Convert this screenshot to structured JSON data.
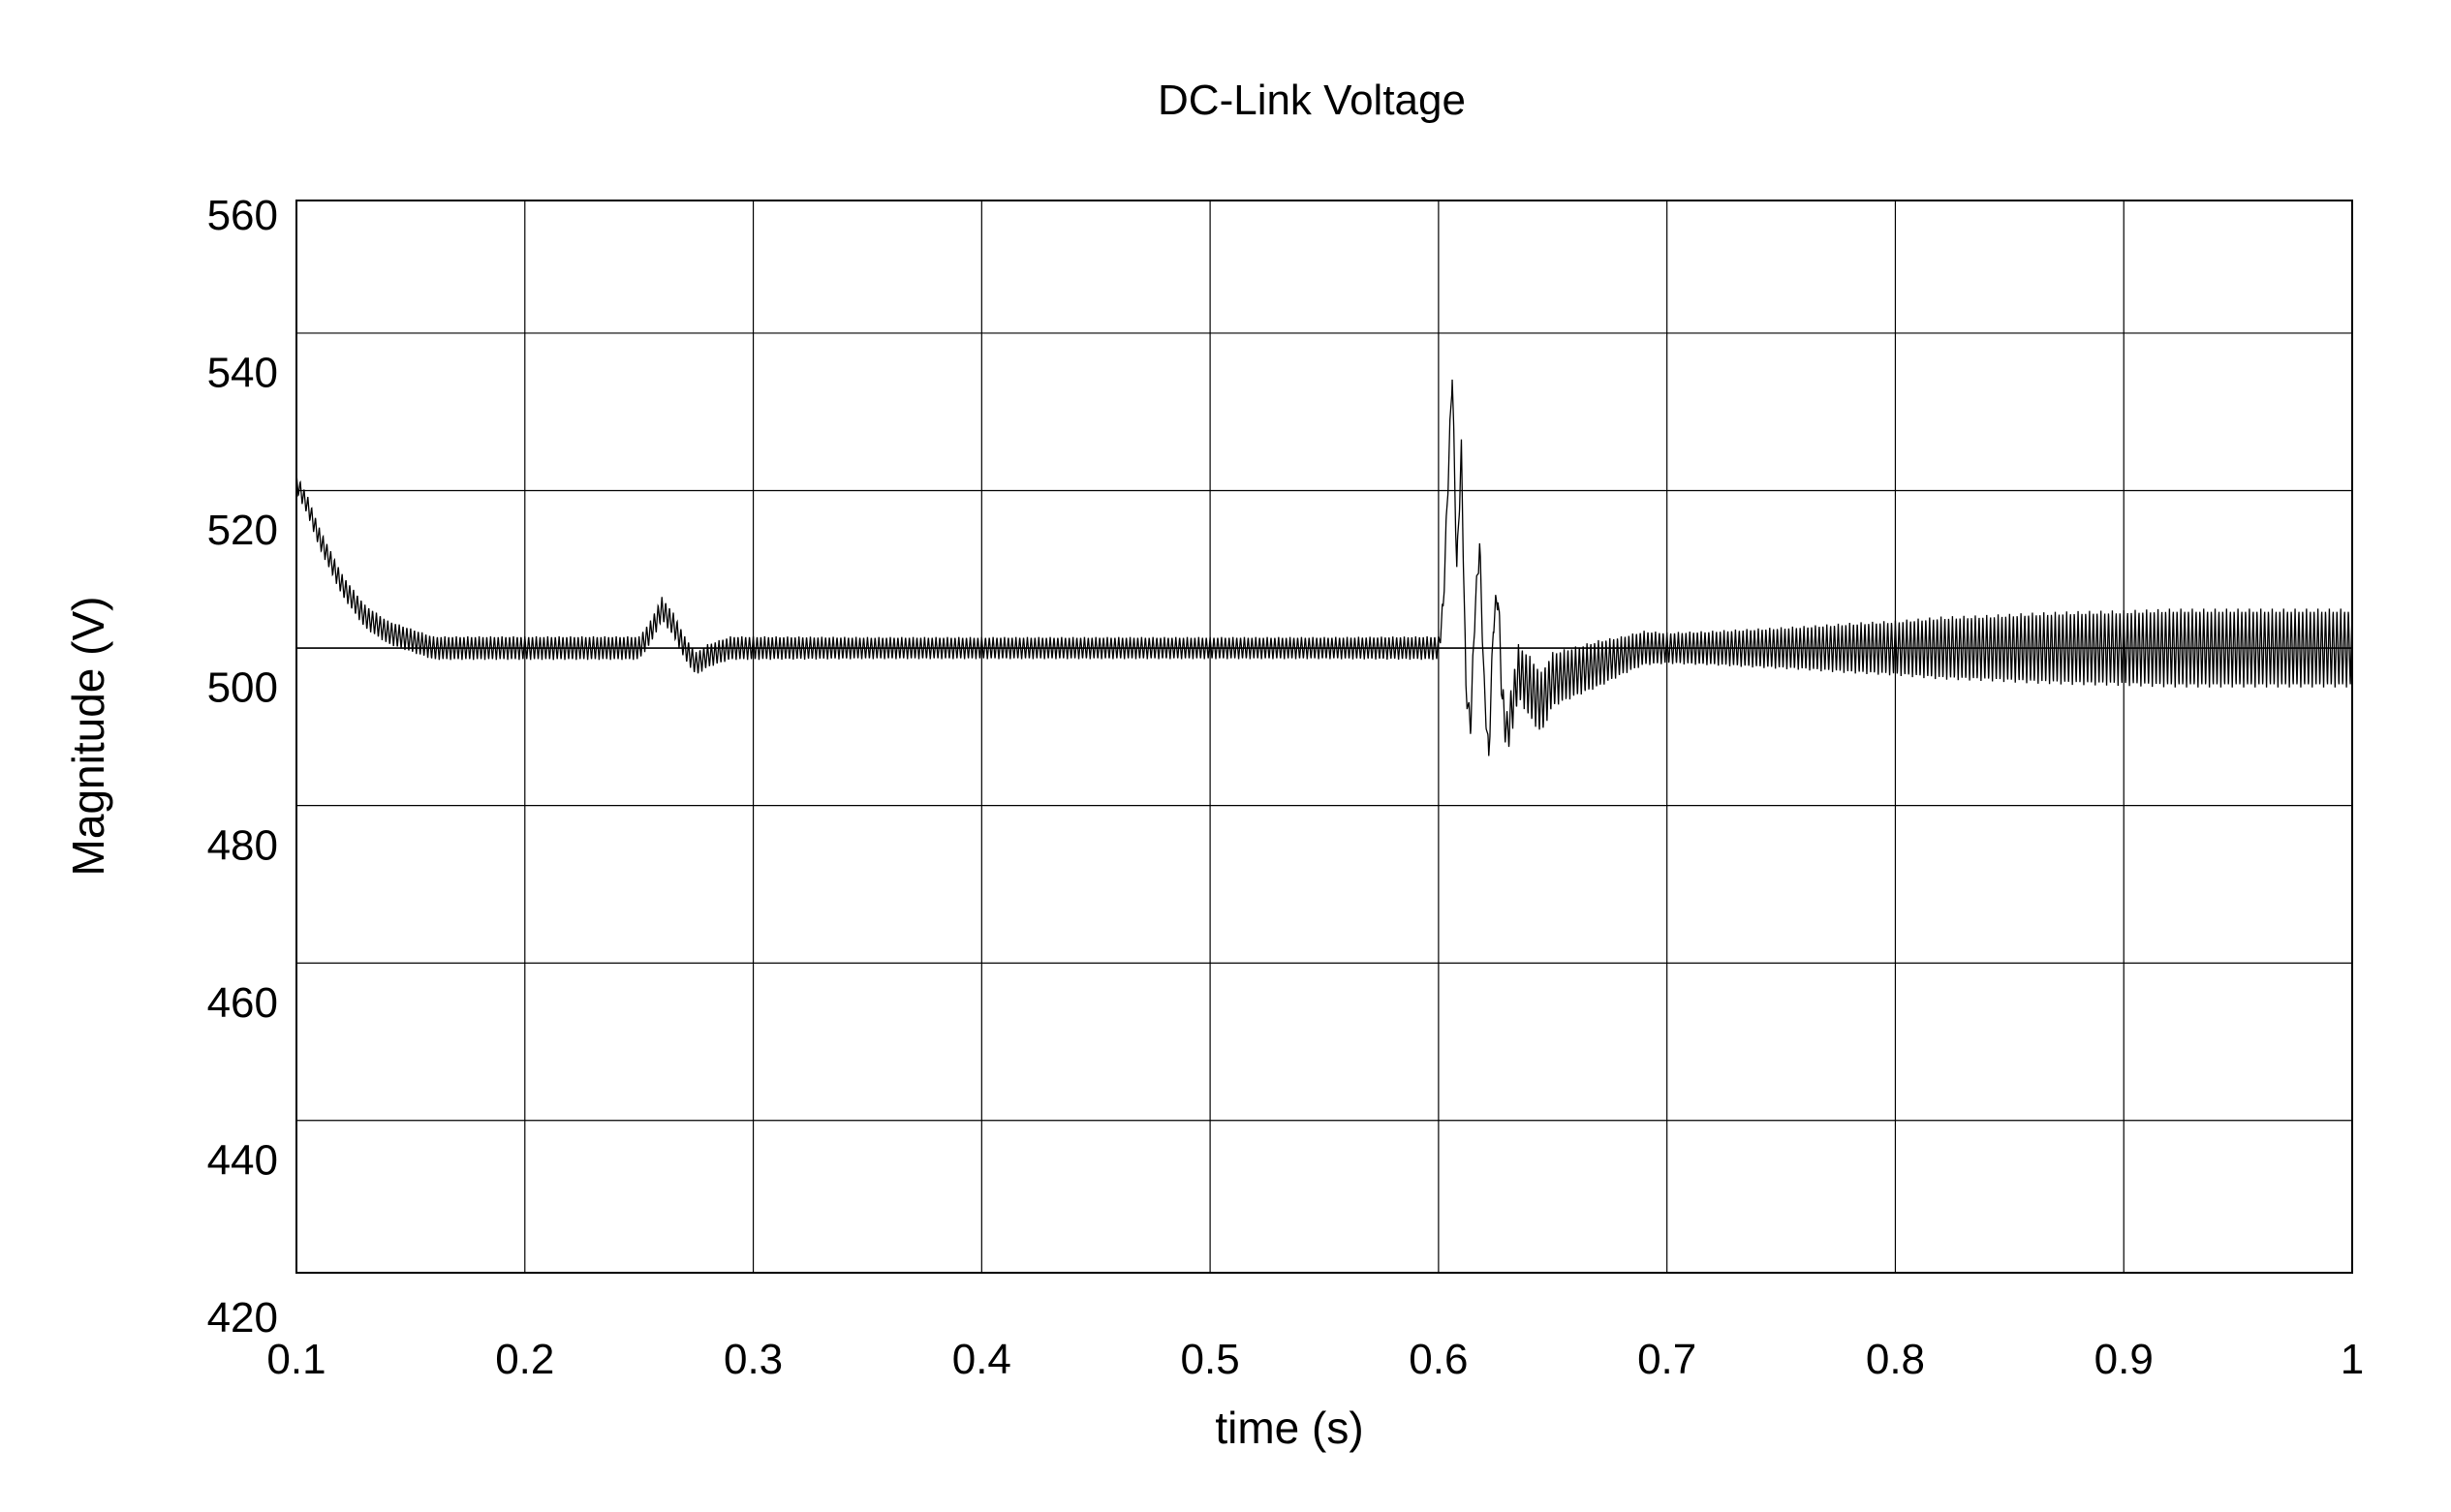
{
  "chart_data": {
    "type": "line",
    "title": "DC-Link Voltage",
    "xlabel": "time (s)",
    "ylabel": "Magnitude (V)",
    "xlim": [
      0.1,
      1.0
    ],
    "ylim": [
      420,
      560
    ],
    "x_ticks": [
      "0.1",
      "0.2",
      "0.3",
      "0.4",
      "0.5",
      "0.6",
      "0.7",
      "0.8",
      "0.9",
      "1"
    ],
    "y_ticks": [
      "420",
      "440",
      "460",
      "480",
      "500",
      "520",
      "540",
      "560"
    ],
    "x_grid": [
      0.1,
      0.2,
      0.3,
      0.4,
      0.5,
      0.6,
      0.7,
      0.8,
      0.9,
      1.0
    ],
    "y_grid": [
      425,
      445,
      465,
      485,
      505,
      525,
      545,
      565
    ],
    "reference_line": 505,
    "grid": true,
    "line_color": "#000000",
    "series": [
      {
        "x": [
          0.1,
          0.105,
          0.11,
          0.115,
          0.12,
          0.125,
          0.13,
          0.135,
          0.14,
          0.145,
          0.15,
          0.155,
          0.16,
          0.17,
          0.18,
          0.19,
          0.2,
          0.21,
          0.22,
          0.23,
          0.24,
          0.25,
          0.255,
          0.26,
          0.265,
          0.27,
          0.275,
          0.28,
          0.29,
          0.3,
          0.35,
          0.4,
          0.45,
          0.5,
          0.55,
          0.6,
          0.602,
          0.604,
          0.606,
          0.608,
          0.61,
          0.612,
          0.614,
          0.616,
          0.618,
          0.62,
          0.622,
          0.624,
          0.626,
          0.628,
          0.63,
          0.635,
          0.64,
          0.645,
          0.65,
          0.66,
          0.67,
          0.68,
          0.69,
          0.7,
          0.72,
          0.74,
          0.76,
          0.78,
          0.8,
          0.82,
          0.84,
          0.86,
          0.88,
          0.9,
          0.92,
          0.94,
          0.96,
          0.98,
          1.0
        ],
        "y": [
          526,
          523,
          519,
          516,
          513,
          511,
          509,
          508,
          507,
          506.5,
          506,
          505.5,
          505,
          505,
          505,
          505,
          505,
          505,
          505,
          505,
          505,
          505,
          507,
          510,
          508,
          505,
          503,
          504,
          505,
          505,
          505,
          505,
          505,
          505,
          505,
          505,
          510,
          525,
          540,
          515,
          530,
          500,
          495,
          510,
          518,
          500,
          491,
          508,
          512,
          498,
          494,
          502,
          500,
          498,
          501,
          502,
          503,
          504,
          505,
          505,
          505,
          505,
          505,
          505,
          505,
          505,
          505,
          505,
          505,
          505,
          505,
          505,
          505,
          505,
          505
        ],
        "ripple_amplitude": [
          1.2,
          1.2,
          1.3,
          1.3,
          1.4,
          1.4,
          1.5,
          1.5,
          1.5,
          1.5,
          1.5,
          1.5,
          1.5,
          1.5,
          1.5,
          1.5,
          1.5,
          1.5,
          1.5,
          1.5,
          1.5,
          1.5,
          1.5,
          1.5,
          1.5,
          1.5,
          1.5,
          1.5,
          1.5,
          1.5,
          1.4,
          1.4,
          1.4,
          1.4,
          1.4,
          1.5,
          1.5,
          1.5,
          1.5,
          1.5,
          1.5,
          1.5,
          1.5,
          1.5,
          1.5,
          1.5,
          1.5,
          1.5,
          2,
          2.5,
          3,
          3.5,
          4,
          4,
          3.5,
          3.2,
          3,
          2.5,
          2.2,
          2,
          2.2,
          2.5,
          2.8,
          3.2,
          3.5,
          4,
          4.2,
          4.5,
          4.7,
          4.8,
          5,
          5,
          5,
          5,
          5
        ],
        "ripple_frequency": 600
      }
    ]
  }
}
